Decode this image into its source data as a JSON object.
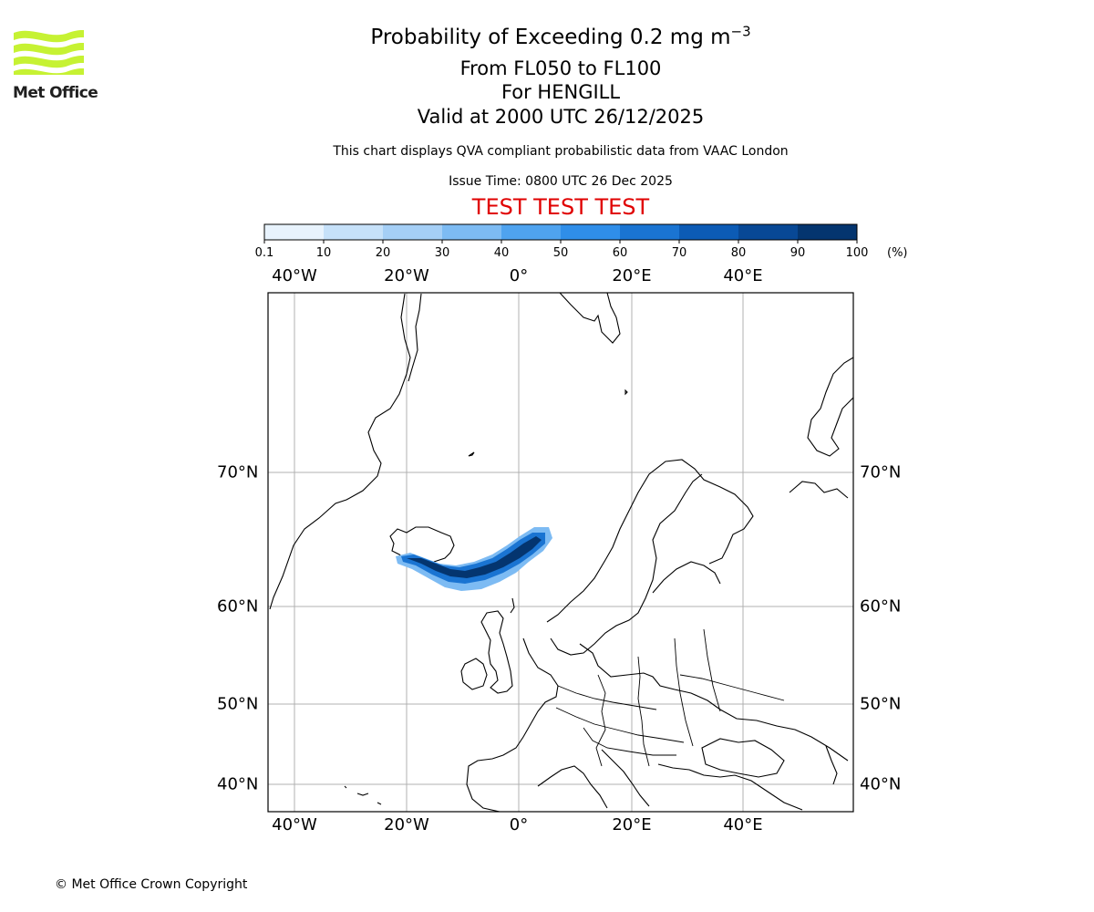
{
  "header": {
    "logo_text": "Met Office",
    "title_main": "Probability of Exceeding 0.2 mg m",
    "title_superscript": "−3",
    "levels": "From FL050 to FL100",
    "location": "For HENGILL",
    "valid": "Valid at 2000 UTC 26/12/2025",
    "note": "This chart displays QVA compliant probabilistic data from VAAC London",
    "issue_time": "Issue Time: 0800 UTC 26 Dec 2025",
    "test_banner": "TEST TEST TEST"
  },
  "colorbar": {
    "tick_labels": [
      "0.1",
      "10",
      "20",
      "30",
      "40",
      "50",
      "60",
      "70",
      "80",
      "90",
      "100"
    ],
    "unit": "(%)",
    "colors": [
      "#e8f3fd",
      "#c6e1f9",
      "#a5cff6",
      "#7dbbf3",
      "#4fa3ef",
      "#2f8ee9",
      "#1a74d2",
      "#0c5bb5",
      "#084895",
      "#04356f",
      "#002554"
    ]
  },
  "map": {
    "lon_labels": [
      "40°W",
      "20°W",
      "0°",
      "20°E",
      "40°E"
    ],
    "lat_labels": [
      "70°N",
      "60°N",
      "50°N",
      "40°N"
    ],
    "plume_color_core": "#04356f",
    "plume_color_edge": "#4fa3ef",
    "grid_color": "#b0b0b0"
  },
  "footer": {
    "copyright": "© Met Office Crown Copyright"
  }
}
